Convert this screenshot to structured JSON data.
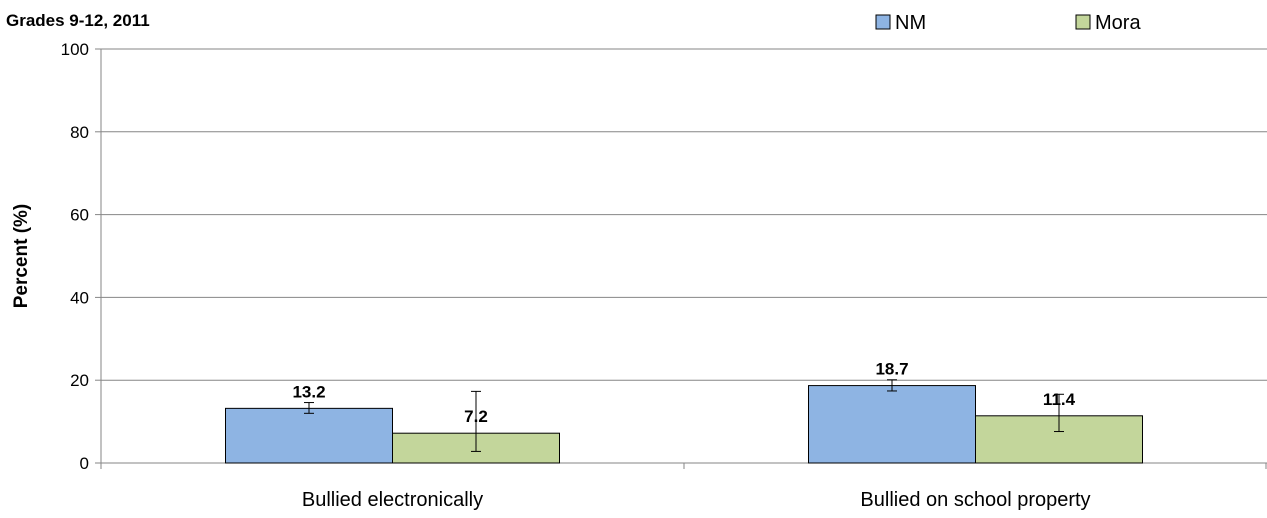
{
  "chart_data": {
    "type": "bar",
    "title": "Grades 9-12, 2011",
    "xlabel": "",
    "ylabel": "Percent (%)",
    "ylim": [
      0,
      100
    ],
    "yticks": [
      0,
      20,
      40,
      60,
      80,
      100
    ],
    "grid": true,
    "legend_position": "top-right",
    "categories": [
      "Bullied electronically",
      "Bullied on school property"
    ],
    "series": [
      {
        "name": "NM",
        "color": "#8EB4E3",
        "values": [
          13.2,
          18.7
        ],
        "error_low": [
          12.0,
          17.4
        ],
        "error_high": [
          14.6,
          20.1
        ],
        "labels": [
          "13.2",
          "18.7"
        ]
      },
      {
        "name": "Mora",
        "color": "#C3D69B",
        "values": [
          7.2,
          11.4
        ],
        "error_low": [
          2.8,
          7.6
        ],
        "error_high": [
          17.3,
          16.6
        ],
        "labels": [
          "7.2",
          "11.4"
        ]
      }
    ]
  }
}
